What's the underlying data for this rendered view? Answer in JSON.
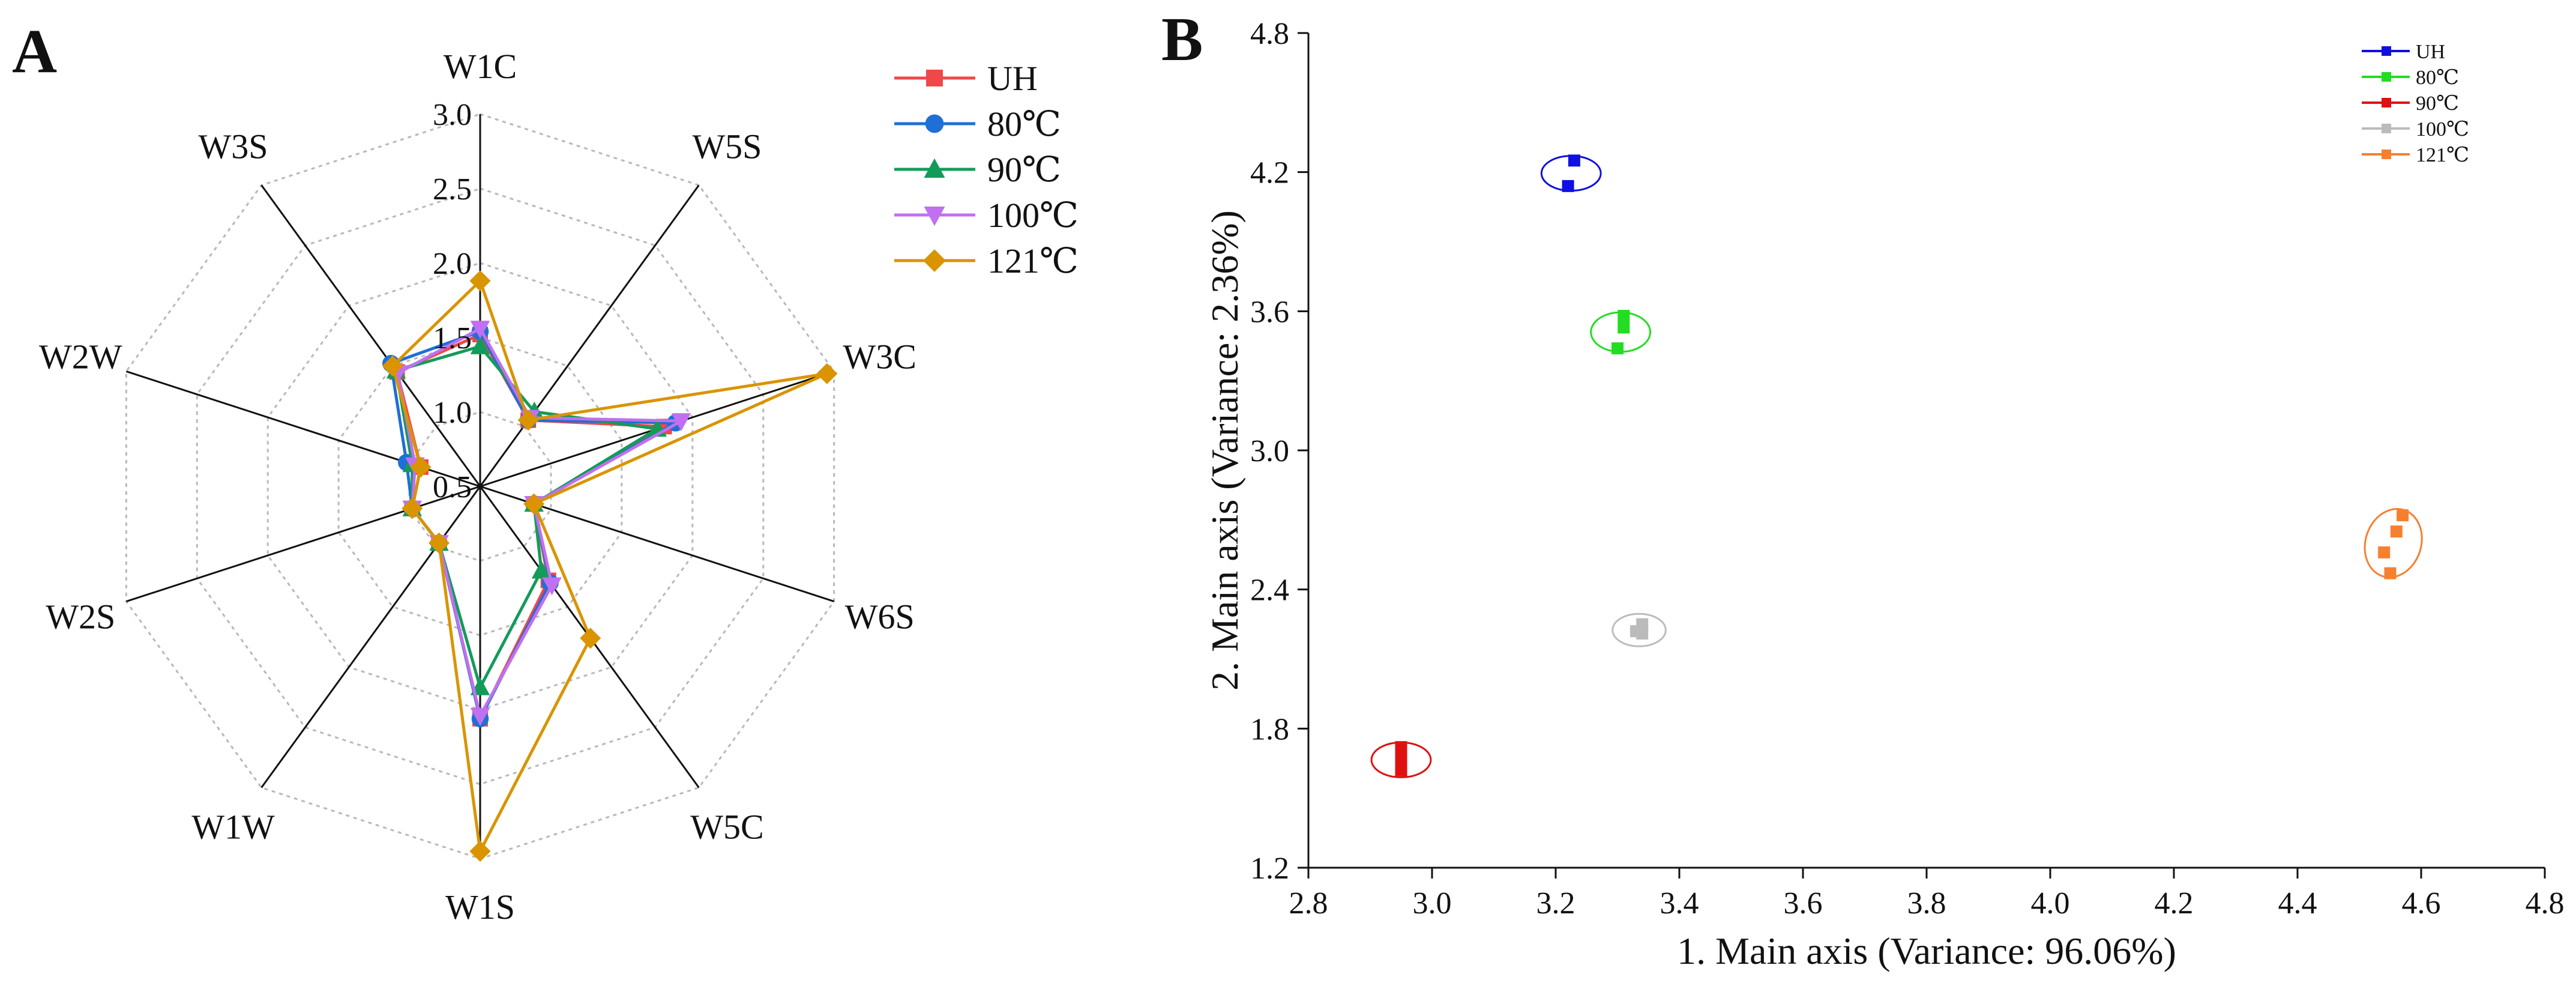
{
  "chart_data": [
    {
      "panel": "A",
      "type": "radar",
      "axes": [
        "W1C",
        "W5S",
        "W3C",
        "W6S",
        "W5C",
        "W1S",
        "W1W",
        "W2S",
        "W2W",
        "W3S"
      ],
      "rlim": [
        0.5,
        3.0
      ],
      "rticks": [
        "0.5",
        "1.0",
        "1.5",
        "2.0",
        "2.5",
        "3.0"
      ],
      "grid": true,
      "legend_position": "top-right",
      "series": [
        {
          "name": "UH",
          "color": "#f04848",
          "marker": "square",
          "values": [
            1.52,
            1.05,
            1.8,
            0.88,
            1.28,
            2.06,
            0.97,
            0.98,
            0.92,
            1.45
          ]
        },
        {
          "name": "80℃",
          "color": "#1f6fd6",
          "marker": "circle",
          "values": [
            1.54,
            1.05,
            1.88,
            0.88,
            1.3,
            2.06,
            0.97,
            0.98,
            1.02,
            1.52
          ]
        },
        {
          "name": "90℃",
          "color": "#139b5a",
          "marker": "triangle-up",
          "values": [
            1.44,
            1.12,
            1.75,
            0.88,
            1.2,
            1.85,
            0.97,
            0.98,
            0.98,
            1.46
          ]
        },
        {
          "name": "100℃",
          "color": "#c070f0",
          "marker": "triangle-down",
          "values": [
            1.56,
            1.07,
            1.92,
            0.88,
            1.32,
            2.04,
            0.97,
            0.98,
            0.96,
            1.44
          ]
        },
        {
          "name": "121℃",
          "color": "#d99400",
          "marker": "diamond",
          "values": [
            1.88,
            1.05,
            2.95,
            0.88,
            1.76,
            2.95,
            0.97,
            0.98,
            0.92,
            1.5
          ]
        }
      ]
    },
    {
      "panel": "B",
      "type": "scatter",
      "xlabel": "1. Main axis (Variance: 96.06%)",
      "ylabel": "2. Main axis (Variance: 2.36%)",
      "xlim": [
        2.8,
        4.8
      ],
      "ylim": [
        1.2,
        4.8
      ],
      "xticks": [
        "2.8",
        "3.0",
        "3.2",
        "3.4",
        "3.6",
        "3.8",
        "4.0",
        "4.2",
        "4.4",
        "4.6",
        "4.8"
      ],
      "yticks": [
        "1.2",
        "1.8",
        "2.4",
        "3.0",
        "3.6",
        "4.2",
        "4.8"
      ],
      "legend_position": "top-right",
      "series": [
        {
          "name": "UH",
          "color": "#1010e0",
          "points": [
            [
              3.23,
              4.25
            ],
            [
              3.22,
              4.14
            ]
          ],
          "ellipse": {
            "cx": 3.225,
            "cy": 4.195,
            "rx": 0.048,
            "ry": 0.075,
            "angle": 0
          }
        },
        {
          "name": "80℃",
          "color": "#22dd22",
          "points": [
            [
              3.31,
              3.58
            ],
            [
              3.31,
              3.53
            ],
            [
              3.3,
              3.44
            ]
          ],
          "ellipse": {
            "cx": 3.305,
            "cy": 3.51,
            "rx": 0.048,
            "ry": 0.085,
            "angle": 0
          }
        },
        {
          "name": "90℃",
          "color": "#e01010",
          "points": [
            [
              2.95,
              1.72
            ],
            [
              2.95,
              1.67
            ],
            [
              2.95,
              1.62
            ]
          ],
          "ellipse": {
            "cx": 2.95,
            "cy": 1.665,
            "rx": 0.048,
            "ry": 0.075,
            "angle": 0
          }
        },
        {
          "name": "100℃",
          "color": "#bbbbbb",
          "points": [
            [
              3.34,
              2.25
            ],
            [
              3.33,
              2.22
            ],
            [
              3.34,
              2.21
            ]
          ],
          "ellipse": {
            "cx": 3.335,
            "cy": 2.225,
            "rx": 0.043,
            "ry": 0.07,
            "angle": 0
          }
        },
        {
          "name": "121℃",
          "color": "#f58030",
          "points": [
            [
              4.57,
              2.72
            ],
            [
              4.56,
              2.65
            ],
            [
              4.54,
              2.56
            ],
            [
              4.55,
              2.47
            ]
          ],
          "ellipse": {
            "cx": 4.555,
            "cy": 2.6,
            "rx": 0.045,
            "ry": 0.15,
            "angle": 18
          }
        }
      ]
    }
  ]
}
